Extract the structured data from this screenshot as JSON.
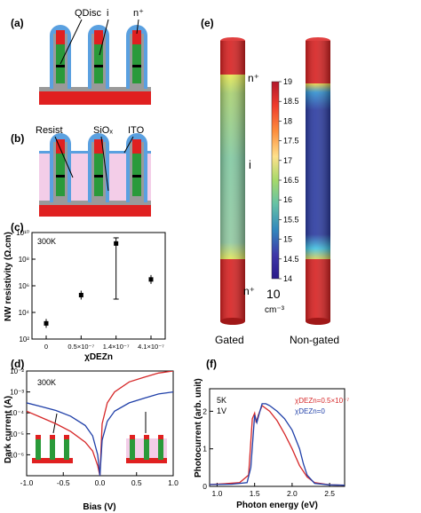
{
  "panels": {
    "a": {
      "label": "(a)",
      "annotations": [
        "QDisc",
        "i",
        "n⁺"
      ]
    },
    "b": {
      "label": "(b)",
      "annotations": [
        "Resist",
        "SiOₓ",
        "ITO"
      ]
    },
    "c": {
      "label": "(c)",
      "temp": "300K",
      "ylabel": "NW resistivity  (Ω.cm)",
      "xlabel": "χDEZn"
    },
    "d": {
      "label": "(d)",
      "temp": "300K",
      "ylabel": "Dark current (A)",
      "xlabel": "Bias (V)"
    },
    "e": {
      "label": "(e)",
      "gated": "Gated",
      "nongated": "Non-gated",
      "n_top": "n⁺",
      "i_mid": "i",
      "n_bot": "n⁺",
      "cbar_unit_base": "10",
      "cbar_unit_exp": "cm⁻³",
      "cbar_ticks": [
        "19",
        "18.5",
        "18",
        "17.5",
        "17",
        "16.5",
        "16",
        "15.5",
        "15",
        "14.5",
        "14"
      ]
    },
    "f": {
      "label": "(f)",
      "temp": "5K",
      "bias": "1V",
      "ylabel": "Photocurrent (arb. unit)",
      "xlabel": "Photon energy (eV)",
      "legend_red": "χDEZn=0.5×10⁻⁷",
      "legend_blue": "χDEZn=0"
    }
  },
  "chart_data": [
    {
      "type": "scatter",
      "panel": "c",
      "categories": [
        "0",
        "0.5×10⁻⁷",
        "1.4×10⁻⁷",
        "4.1×10⁻⁷"
      ],
      "values": [
        1500.0,
        200000.0,
        1500000000.0,
        3000000.0
      ],
      "ylim": [
        100,
        10000000000
      ],
      "yscale": "log",
      "yticks": [
        "10²",
        "10⁴",
        "10⁶",
        "10⁸",
        "10¹⁰"
      ],
      "xlabel": "χDEZn",
      "ylabel": "NW resistivity  (Ω.cm)"
    },
    {
      "type": "line",
      "panel": "d",
      "xlim": [
        -1.0,
        1.0
      ],
      "ylim": [
        1e-07,
        0.01
      ],
      "yscale": "log",
      "xticks": [
        "-1.0",
        "-0.5",
        "0.0",
        "0.5",
        "1.0"
      ],
      "yticks": [
        "10⁻⁶",
        "10⁻⁵",
        "10⁻⁴",
        "10⁻³",
        "10⁻²"
      ],
      "series": [
        {
          "color": "#d62728",
          "x": [
            -1.0,
            -0.8,
            -0.6,
            -0.4,
            -0.2,
            -0.1,
            -0.03,
            0.0,
            0.03,
            0.1,
            0.2,
            0.4,
            0.6,
            0.8,
            1.0
          ],
          "values": [
            0.00012,
            6e-05,
            3e-05,
            1.3e-05,
            4e-06,
            1.5e-06,
            3e-07,
            1e-07,
            3e-05,
            0.0003,
            0.001,
            0.003,
            0.005,
            0.008,
            0.01
          ]
        },
        {
          "color": "#1f3fa8",
          "x": [
            -1.0,
            -0.8,
            -0.6,
            -0.4,
            -0.2,
            -0.1,
            -0.03,
            0.0,
            0.03,
            0.1,
            0.2,
            0.4,
            0.6,
            0.8,
            1.0
          ],
          "values": [
            0.0003,
            0.0002,
            0.00013,
            7e-05,
            2.5e-05,
            8e-06,
            1e-06,
            1e-07,
            5e-06,
            4e-05,
            0.00012,
            0.0003,
            0.0005,
            0.0008,
            0.001
          ]
        }
      ],
      "xlabel": "Bias (V)",
      "ylabel": "Dark current (A)"
    },
    {
      "type": "line",
      "panel": "f",
      "xlim": [
        0.9,
        2.7
      ],
      "ylim": [
        0,
        2.6
      ],
      "xticks": [
        "1.0",
        "1.5",
        "2.0",
        "2.5"
      ],
      "yticks": [
        "0",
        "1",
        "2"
      ],
      "series": [
        {
          "name": "χDEZn=0.5×10⁻⁷",
          "color": "#d62728",
          "x": [
            0.9,
            1.1,
            1.3,
            1.42,
            1.47,
            1.5,
            1.52,
            1.55,
            1.6,
            1.7,
            1.8,
            1.9,
            2.0,
            2.1,
            2.2,
            2.3,
            2.5,
            2.7
          ],
          "values": [
            0.05,
            0.07,
            0.1,
            0.3,
            1.8,
            1.95,
            1.7,
            1.9,
            2.15,
            2.0,
            1.75,
            1.4,
            1.0,
            0.55,
            0.25,
            0.1,
            0.04,
            0.03
          ]
        },
        {
          "name": "χDEZn=0",
          "color": "#1f3fa8",
          "x": [
            0.9,
            1.2,
            1.4,
            1.45,
            1.5,
            1.53,
            1.57,
            1.6,
            1.65,
            1.7,
            1.8,
            1.9,
            2.0,
            2.1,
            2.15,
            2.2,
            2.3,
            2.5,
            2.7
          ],
          "values": [
            0.05,
            0.06,
            0.1,
            0.5,
            1.9,
            1.7,
            2.0,
            2.2,
            2.2,
            2.15,
            2.0,
            1.8,
            1.5,
            1.0,
            0.6,
            0.3,
            0.08,
            0.04,
            0.03
          ]
        }
      ],
      "xlabel": "Photon energy (eV)",
      "ylabel": "Photocurrent (arb. unit)"
    }
  ]
}
